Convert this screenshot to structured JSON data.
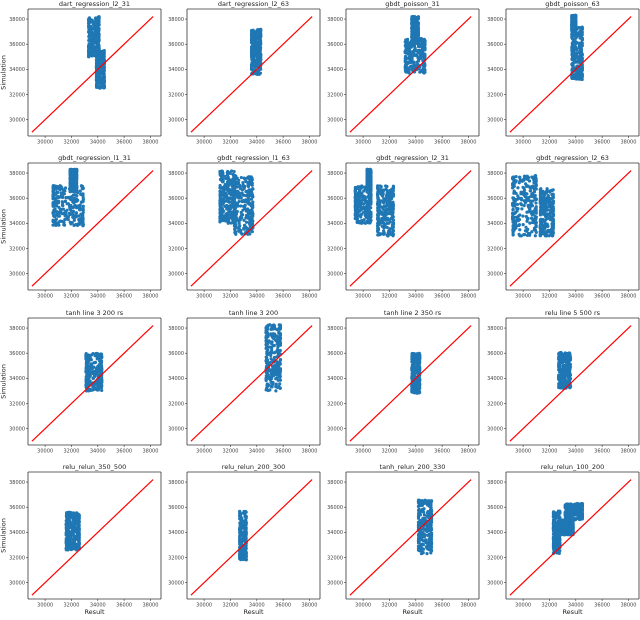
{
  "chart_data": {
    "type": "scatter",
    "layout": "4x4 grid",
    "xlabel": "Result",
    "ylabel": "Simulation",
    "xlim": [
      28700,
      38800
    ],
    "ylim": [
      28700,
      38800
    ],
    "xticks": [
      "30000",
      "32000",
      "34000",
      "36000",
      "38000"
    ],
    "yticks": [
      "30000",
      "32000",
      "34000",
      "36000",
      "38000"
    ],
    "grid": false,
    "colors": {
      "points": "#1f77b4",
      "reference_line": "#ff0000"
    },
    "reference_line": {
      "x": [
        29000,
        38200
      ],
      "y": [
        29000,
        38200
      ]
    },
    "panels": [
      {
        "title": "dart_regression_l2_31",
        "clusters": [
          {
            "x": [
              33300,
              34100
            ],
            "y": [
              35000,
              38200
            ]
          },
          {
            "x": [
              33900,
              34500
            ],
            "y": [
              32500,
              35500
            ]
          }
        ]
      },
      {
        "title": "dart_regression_l2_63",
        "clusters": [
          {
            "x": [
              33600,
              34300
            ],
            "y": [
              33600,
              37200
            ]
          }
        ]
      },
      {
        "title": "gbdt_poisson_31",
        "clusters": [
          {
            "x": [
              33200,
              34700
            ],
            "y": [
              33700,
              36500
            ]
          },
          {
            "x": [
              33700,
              34200
            ],
            "y": [
              36000,
              38200
            ]
          }
        ]
      },
      {
        "title": "gbdt_poisson_63",
        "clusters": [
          {
            "x": [
              33700,
              34500
            ],
            "y": [
              33200,
              37400
            ]
          },
          {
            "x": [
              33700,
              34000
            ],
            "y": [
              37000,
              38300
            ]
          }
        ]
      },
      {
        "title": "gbdt_regression_l1_31",
        "clusters": [
          {
            "x": [
              30600,
              32900
            ],
            "y": [
              33800,
              37000
            ]
          },
          {
            "x": [
              31900,
              32400
            ],
            "y": [
              36500,
              38300
            ]
          }
        ]
      },
      {
        "title": "gbdt_regression_l1_63",
        "clusters": [
          {
            "x": [
              31200,
              32300
            ],
            "y": [
              34000,
              38200
            ]
          },
          {
            "x": [
              32300,
              33700
            ],
            "y": [
              33100,
              37800
            ]
          }
        ]
      },
      {
        "title": "gbdt_regression_l2_31",
        "clusters": [
          {
            "x": [
              29400,
              30600
            ],
            "y": [
              34000,
              37000
            ]
          },
          {
            "x": [
              30300,
              30600
            ],
            "y": [
              36500,
              38300
            ]
          },
          {
            "x": [
              31100,
              32300
            ],
            "y": [
              33000,
              37000
            ]
          }
        ]
      },
      {
        "title": "gbdt_regression_l2_63",
        "clusters": [
          {
            "x": [
              29200,
              31000
            ],
            "y": [
              33000,
              37800
            ]
          },
          {
            "x": [
              31300,
              32300
            ],
            "y": [
              33000,
              36800
            ]
          }
        ]
      },
      {
        "title": "tanh line 3 200 rs",
        "clusters": [
          {
            "x": [
              33100,
              34300
            ],
            "y": [
              33000,
              36000
            ]
          }
        ]
      },
      {
        "title": "tanh line 3 200",
        "clusters": [
          {
            "x": [
              34700,
              35800
            ],
            "y": [
              33000,
              38300
            ]
          }
        ]
      },
      {
        "title": "tanh line 2 350 rs",
        "clusters": [
          {
            "x": [
              33700,
              34300
            ],
            "y": [
              32800,
              36000
            ]
          }
        ]
      },
      {
        "title": "relu line 5 500 rs",
        "clusters": [
          {
            "x": [
              32700,
              33600
            ],
            "y": [
              33200,
              36100
            ]
          }
        ]
      },
      {
        "title": "relu_relun_350_500",
        "clusters": [
          {
            "x": [
              31600,
              32600
            ],
            "y": [
              32600,
              35600
            ]
          }
        ]
      },
      {
        "title": "relu_relun_200_300",
        "clusters": [
          {
            "x": [
              32700,
              33200
            ],
            "y": [
              31800,
              35700
            ]
          }
        ]
      },
      {
        "title": "tanh_relun_200_330",
        "clusters": [
          {
            "x": [
              34200,
              35200
            ],
            "y": [
              32300,
              36600
            ]
          }
        ]
      },
      {
        "title": "relu_relun_100_200",
        "clusters": [
          {
            "x": [
              32300,
              32800
            ],
            "y": [
              32300,
              35700
            ]
          },
          {
            "x": [
              33200,
              34500
            ],
            "y": [
              35000,
              36300
            ]
          },
          {
            "x": [
              32800,
              33800
            ],
            "y": [
              33800,
              35000
            ]
          }
        ]
      }
    ]
  }
}
